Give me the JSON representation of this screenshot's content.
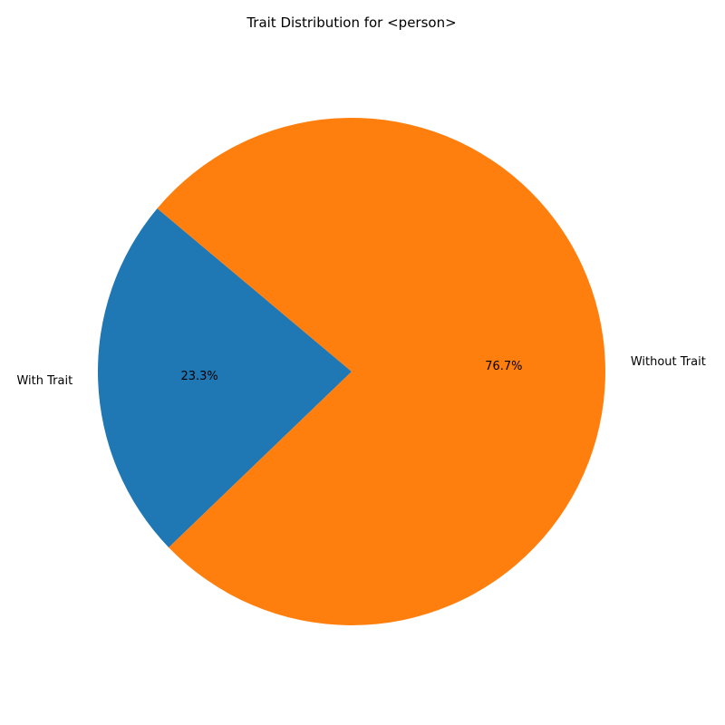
{
  "chart_data": {
    "type": "pie",
    "title": "Trait Distribution for <person>",
    "slices": [
      {
        "label": "With Trait",
        "value": 23.3,
        "display": "23.3%",
        "color": "#1f77b4"
      },
      {
        "label": "Without Trait",
        "value": 76.7,
        "display": "76.7%",
        "color": "#ff7f0e"
      }
    ],
    "start_angle_deg": 140,
    "direction": "counterclockwise"
  }
}
